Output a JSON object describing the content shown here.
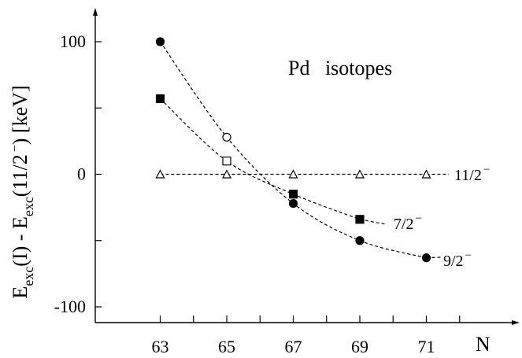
{
  "chart_data": {
    "type": "line",
    "title": "",
    "annotation": "Pd   isotopes",
    "xlabel": "N",
    "ylabel": {
      "e1": "E",
      "s1": "exc",
      "mid": "(I) - E",
      "s2": "exc",
      "paren": "(11/2",
      "sup": "−",
      "tail": ") [keV]"
    },
    "xlim": [
      61.7,
      72.5
    ],
    "ylim": [
      -115,
      125
    ],
    "x_ticks": [
      63,
      65,
      67,
      69,
      71
    ],
    "x_minor_ticks": [
      64,
      66,
      68,
      70,
      72
    ],
    "x_tick_labels": [
      "63",
      "65",
      "67",
      "69",
      "71"
    ],
    "y_ticks": [
      -100,
      -50,
      0,
      50,
      100
    ],
    "y_tick_labels": {
      "100": "100",
      "0": "0",
      "-100": "-100"
    },
    "grid": false,
    "series": [
      {
        "name": "9/2",
        "label_sup": "−",
        "marker": "circle",
        "points": [
          {
            "x": 63,
            "y": 100,
            "filled": true
          },
          {
            "x": 65,
            "y": 28,
            "filled": false
          },
          {
            "x": 67,
            "y": -22,
            "filled": true
          },
          {
            "x": 69,
            "y": -50,
            "filled": true
          },
          {
            "x": 71,
            "y": -63,
            "filled": true
          }
        ]
      },
      {
        "name": "7/2",
        "label_sup": "−",
        "marker": "square",
        "points": [
          {
            "x": 63,
            "y": 57,
            "filled": true
          },
          {
            "x": 65,
            "y": 10,
            "filled": false
          },
          {
            "x": 67,
            "y": -15,
            "filled": true
          },
          {
            "x": 69,
            "y": -34,
            "filled": true
          }
        ]
      },
      {
        "name": "11/2",
        "label_sup": "−",
        "marker": "triangle",
        "points": [
          {
            "x": 63,
            "y": 0,
            "filled": false
          },
          {
            "x": 65,
            "y": 0,
            "filled": false
          },
          {
            "x": 67,
            "y": 0,
            "filled": false
          },
          {
            "x": 69,
            "y": 0,
            "filled": false
          },
          {
            "x": 71,
            "y": 0,
            "filled": false
          }
        ]
      }
    ]
  }
}
